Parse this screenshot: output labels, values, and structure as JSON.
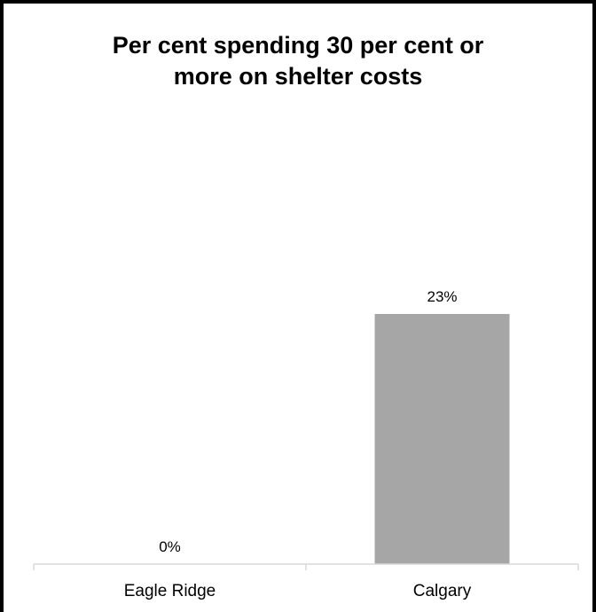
{
  "chart_data": {
    "type": "bar",
    "title_lines": [
      "Per cent spending 30 per cent or",
      "more on shelter costs"
    ],
    "categories": [
      "Eagle Ridge",
      "Calgary"
    ],
    "values": [
      0,
      23
    ],
    "value_labels": [
      "0%",
      "23%"
    ],
    "ylim": [
      0,
      25
    ],
    "grid": false,
    "legend": "none",
    "bar_color": "#a6a6a6"
  }
}
